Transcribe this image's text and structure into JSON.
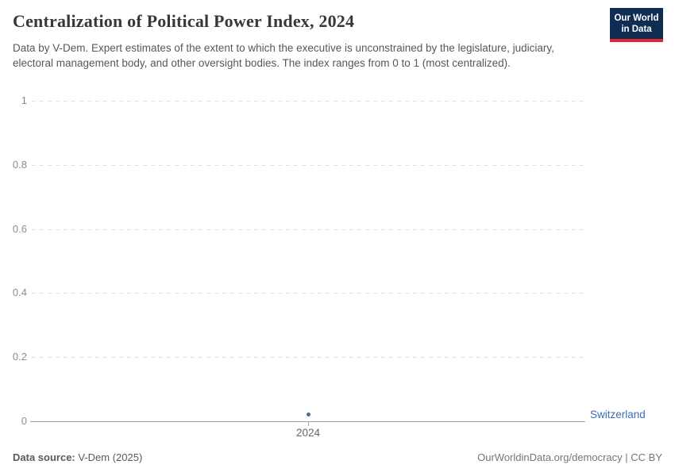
{
  "header": {
    "title": "Centralization of Political Power Index, 2024",
    "subtitle": "Data by V-Dem. Expert estimates of the extent to which the executive is unconstrained by the legislature, judiciary, electoral management body, and other oversight bodies. The index ranges from 0 to 1 (most centralized)."
  },
  "logo": {
    "line1": "Our World",
    "line2": "in Data",
    "bg_color": "#0f2c52",
    "stripe_color": "#e0282e"
  },
  "chart_data": {
    "type": "scatter",
    "title": "Centralization of Political Power Index, 2024",
    "x": [
      2024
    ],
    "series": [
      {
        "name": "Switzerland",
        "values": [
          0.02
        ],
        "color": "#4c6a9c"
      }
    ],
    "xlabel": "",
    "ylabel": "",
    "ylim": [
      0,
      1
    ],
    "yticks": [
      0,
      0.2,
      0.4,
      0.6,
      0.8,
      1
    ],
    "ytick_labels": [
      "0",
      "0.2",
      "0.4",
      "0.6",
      "0.8",
      "1"
    ],
    "xtick_labels": [
      "2024"
    ],
    "grid": "horizontal-dashed",
    "legend_position": "right-entity-label",
    "entity_label": "Switzerland",
    "entity_label_color": "#3d6bb5"
  },
  "footer": {
    "source_label": "Data source:",
    "source_value": " V-Dem (2025)",
    "credit": "OurWorldinData.org/democracy | CC BY"
  }
}
